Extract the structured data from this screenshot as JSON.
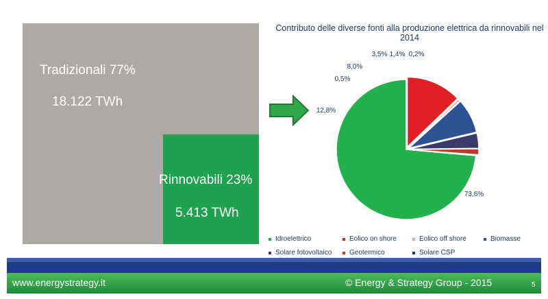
{
  "left": {
    "traditional_label": "Tradizionali 77%",
    "traditional_value": "18.122 TWh",
    "renewable_label": "Rinnovabili 23%",
    "renewable_value": "5.413 TWh",
    "traditional_share": 77,
    "renewable_share": 23,
    "colors": {
      "traditional": "#adaaa6",
      "renewable": "#1fa24e"
    }
  },
  "chart_data": {
    "type": "pie",
    "title": "Contributo delle diverse fonti alla produzione elettrica da rinnovabili nel 2014",
    "slices": [
      {
        "name": "Idroelettrico",
        "value": 73.6,
        "label": "73,6%",
        "color": "#22b14c"
      },
      {
        "name": "Eolico on shore",
        "value": 12.8,
        "label": "12,8%",
        "color": "#e31e24"
      },
      {
        "name": "Eolico off shore",
        "value": 0.5,
        "label": "0,5%",
        "color": "#f2a0a0"
      },
      {
        "name": "Biomasse",
        "value": 8.0,
        "label": "8,0%",
        "color": "#2e5395"
      },
      {
        "name": "Solare fotovoltaico",
        "value": 3.5,
        "label": "3,5%",
        "color": "#3b3a6b"
      },
      {
        "name": "Geotermico",
        "value": 1.4,
        "label": "1,4%",
        "color": "#c0392b"
      },
      {
        "name": "Solare CSP",
        "value": 0.2,
        "label": "0,2%",
        "color": "#1f3864"
      }
    ],
    "legend_position": "bottom"
  },
  "footer": {
    "website": "www.energystrategy.it",
    "copyright": "© Energy & Strategy Group - 2015",
    "page": "5"
  }
}
